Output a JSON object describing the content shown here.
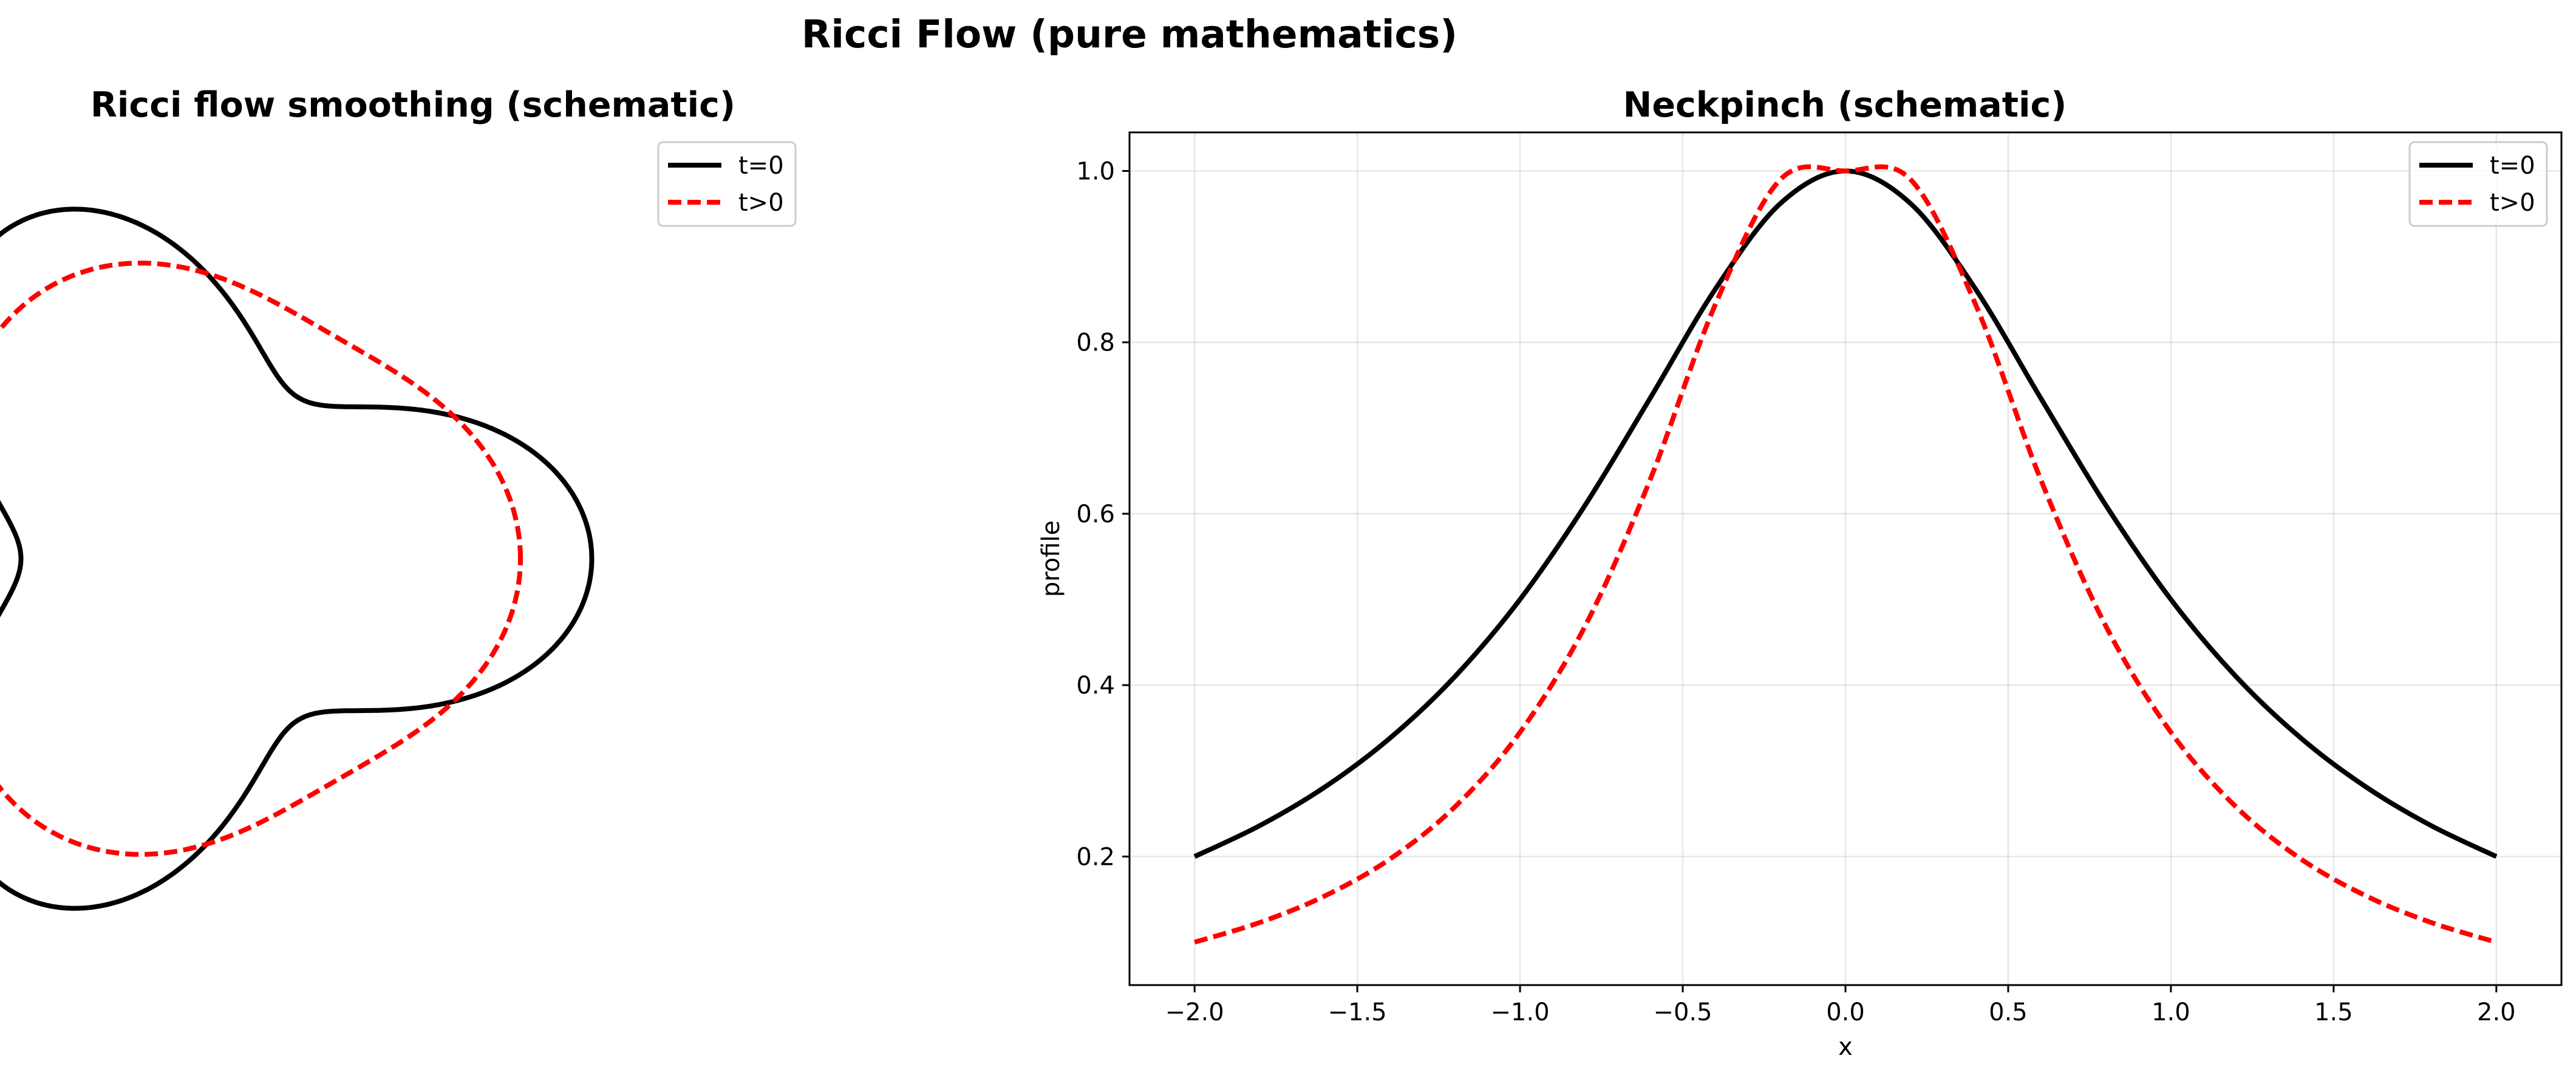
{
  "figure": {
    "suptitle": "Ricci Flow (pure mathematics)"
  },
  "colors": {
    "series_t0": "#000000",
    "series_tpos": "#ff0000",
    "background": "#ffffff",
    "grid": "#b0b0b0"
  },
  "chart_data": [
    {
      "type": "line",
      "title": "Ricci flow smoothing (schematic)",
      "axes_visible": false,
      "aspect": "equal",
      "xlim": [
        -1.6,
        1.6
      ],
      "ylim": [
        -1.6,
        1.6
      ],
      "grid": false,
      "legend_position": "upper right",
      "series": [
        {
          "name": "t=0",
          "color": "#000000",
          "dash": "solid",
          "parametric": "r = 1 + 0.35 cos(3θ)",
          "theta_range_deg": [
            0,
            360
          ]
        },
        {
          "name": "t>0",
          "color": "#ff0000",
          "dash": "dashed",
          "parametric": "r = 1 + 0.1 cos(3θ)",
          "theta_range_deg": [
            0,
            360
          ]
        }
      ]
    },
    {
      "type": "line",
      "title": "Neckpinch (schematic)",
      "xlabel": "x",
      "ylabel": "profile",
      "xlim": [
        -2.2,
        2.2
      ],
      "ylim": [
        0.05,
        1.045
      ],
      "grid": true,
      "legend_position": "upper right",
      "xticks": [
        -2.0,
        -1.5,
        -1.0,
        -0.5,
        0.0,
        0.5,
        1.0,
        1.5,
        2.0
      ],
      "xtick_labels": [
        "−2.0",
        "−1.5",
        "−1.0",
        "−0.5",
        "0.0",
        "0.5",
        "1.0",
        "1.5",
        "2.0"
      ],
      "yticks": [
        0.2,
        0.4,
        0.6,
        0.8,
        1.0
      ],
      "ytick_labels": [
        "0.2",
        "0.4",
        "0.6",
        "0.8",
        "1.0"
      ],
      "series": [
        {
          "name": "t=0",
          "color": "#000000",
          "dash": "solid",
          "x": [
            -2.0,
            -1.8,
            -1.6,
            -1.4,
            -1.2,
            -1.0,
            -0.8,
            -0.6,
            -0.4,
            -0.2,
            0.0,
            0.2,
            0.4,
            0.6,
            0.8,
            1.0,
            1.2,
            1.4,
            1.6,
            1.8,
            2.0
          ],
          "y": [
            0.2,
            0.236,
            0.281,
            0.338,
            0.41,
            0.5,
            0.61,
            0.735,
            0.862,
            0.962,
            1.0,
            0.962,
            0.862,
            0.735,
            0.61,
            0.5,
            0.41,
            0.338,
            0.281,
            0.236,
            0.2
          ]
        },
        {
          "name": "t>0",
          "color": "#ff0000",
          "dash": "dashed",
          "x": [
            -2.0,
            -1.8,
            -1.6,
            -1.4,
            -1.2,
            -1.0,
            -0.8,
            -0.6,
            -0.4,
            -0.2,
            0.0,
            0.2,
            0.4,
            0.6,
            0.8,
            1.0,
            1.2,
            1.4,
            1.6,
            1.8,
            2.0
          ],
          "y": [
            0.1,
            0.123,
            0.154,
            0.197,
            0.258,
            0.345,
            0.469,
            0.64,
            0.844,
            0.99,
            1.0,
            0.99,
            0.844,
            0.64,
            0.469,
            0.345,
            0.258,
            0.197,
            0.154,
            0.123,
            0.1
          ]
        }
      ]
    }
  ]
}
